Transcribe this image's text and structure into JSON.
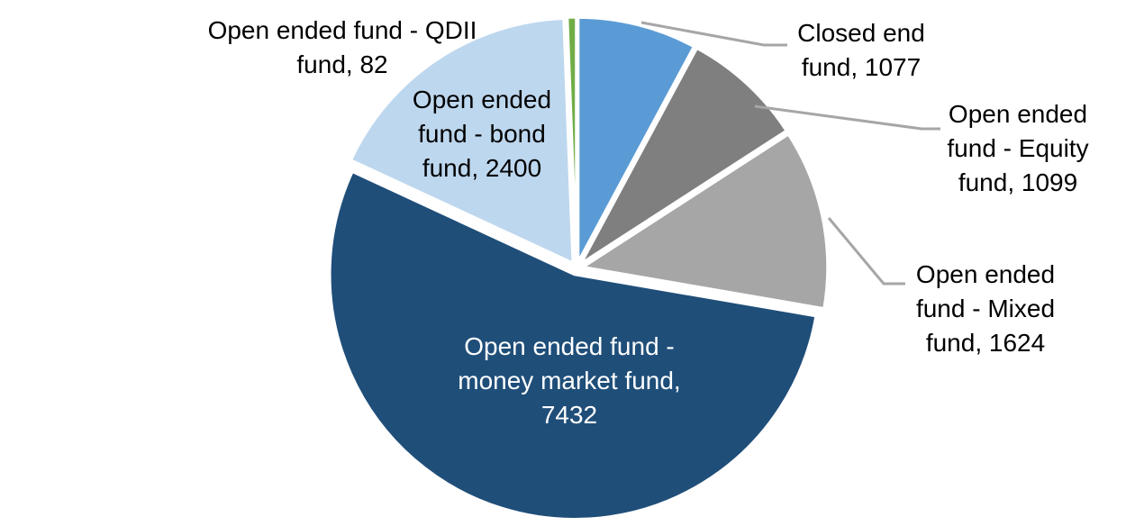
{
  "chart_data": {
    "type": "pie",
    "title": "",
    "legend": "none",
    "background": "#FFFFFF",
    "start_angle_deg": 0,
    "direction": "clockwise",
    "total": 13714,
    "leader_line_color": "#A6A6A6",
    "slice_border_color": "#FFFFFF",
    "segments": [
      {
        "label": "Closed end fund",
        "value": 1077,
        "color": "#5B9BD5",
        "data_label": "Closed end\nfund, 1077",
        "label_text_color": "#000000",
        "has_leader_line": true
      },
      {
        "label": "Open ended fund - Equity fund",
        "value": 1099,
        "color": "#7F7F7F",
        "data_label": "Open ended\nfund - Equity\nfund, 1099",
        "label_text_color": "#000000",
        "has_leader_line": true
      },
      {
        "label": "Open ended fund - Mixed fund",
        "value": 1624,
        "color": "#A6A6A6",
        "data_label": "Open ended\nfund - Mixed\nfund, 1624",
        "label_text_color": "#000000",
        "has_leader_line": true
      },
      {
        "label": "Open ended fund - money market fund",
        "value": 7432,
        "color": "#1F4E79",
        "data_label": "Open ended fund -\nmoney market fund,\n7432",
        "label_text_color": "#FFFFFF",
        "has_leader_line": false
      },
      {
        "label": "Open ended fund - bond fund",
        "value": 2400,
        "color": "#BDD7EE",
        "data_label": "Open ended\nfund - bond\nfund, 2400",
        "label_text_color": "#000000",
        "has_leader_line": false
      },
      {
        "label": "Open ended fund - QDII fund",
        "value": 82,
        "color": "#70AD47",
        "data_label": "Open ended fund - QDII\nfund, 82",
        "label_text_color": "#000000",
        "has_leader_line": false
      }
    ]
  }
}
